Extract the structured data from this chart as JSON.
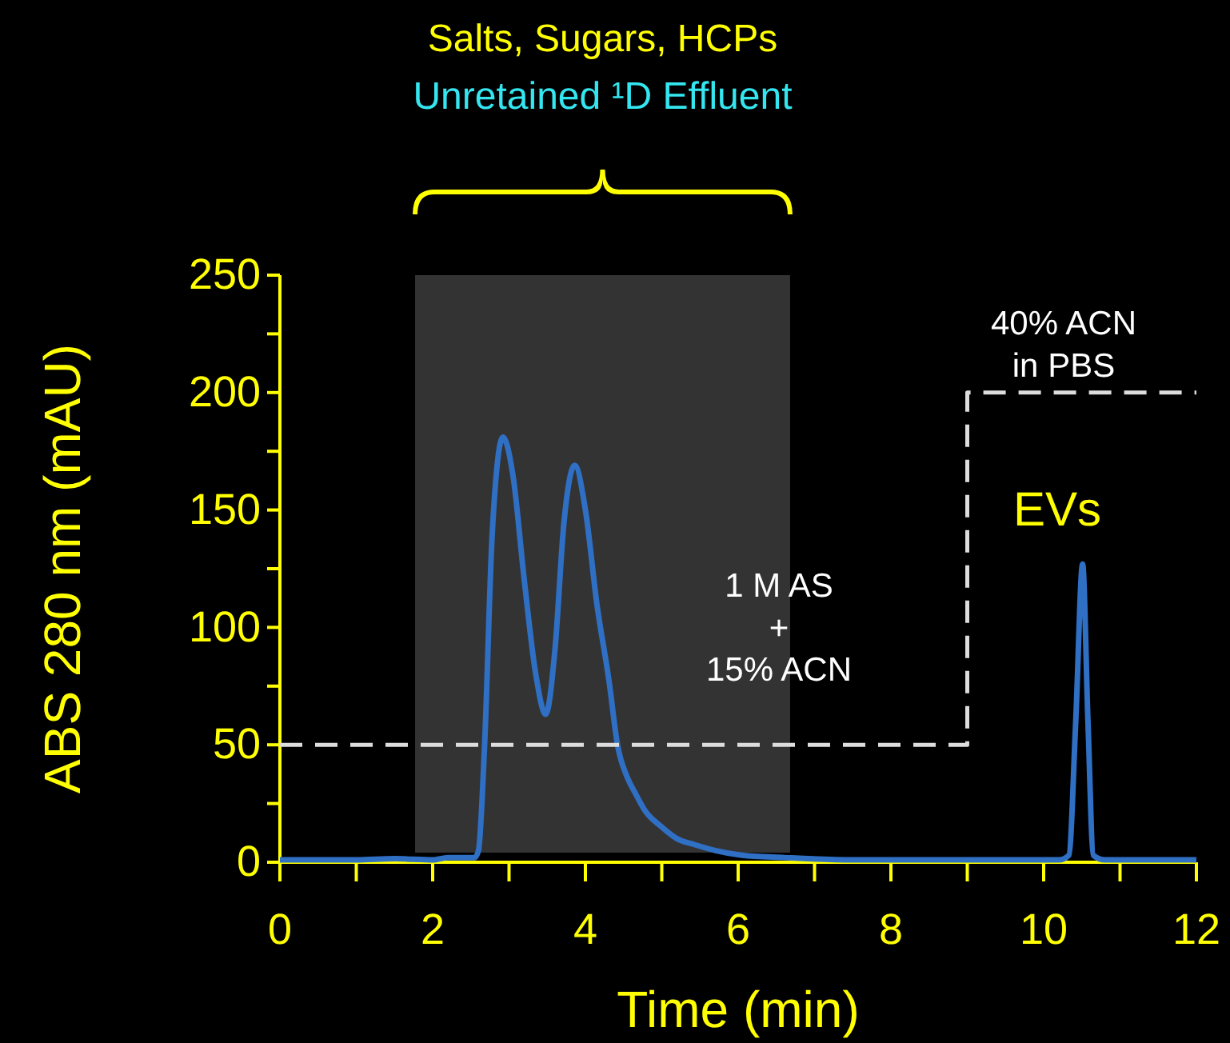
{
  "chart_data": {
    "type": "line",
    "title": "Salts, Sugars, HCPs",
    "subtitle": "Unretained ¹D Effluent",
    "xlabel": "Time (min)",
    "ylabel": "ABS 280 nm (mAU)",
    "xlim": [
      0,
      12
    ],
    "xticks": [
      0,
      {
        "value": 1,
        "label": null
      },
      2,
      {
        "value": 3,
        "label": null
      },
      4,
      {
        "value": 5,
        "label": null
      },
      6,
      {
        "value": 7,
        "label": null
      },
      8,
      {
        "value": 9,
        "label": null
      },
      10,
      {
        "value": 11,
        "label": null
      },
      12
    ],
    "ylim": [
      0,
      250
    ],
    "yticks": [
      0,
      {
        "value": 25,
        "label": null
      },
      50,
      {
        "value": 75,
        "label": null
      },
      100,
      {
        "value": 125,
        "label": null
      },
      150,
      {
        "value": 175,
        "label": null
      },
      200,
      {
        "value": 225,
        "label": null
      },
      250
    ],
    "series": [
      {
        "color": "#2f6fc4",
        "x": [
          0,
          1,
          1.5,
          2.0,
          2.2,
          2.4,
          2.55,
          2.6,
          2.68,
          2.78,
          2.92,
          3.05,
          3.2,
          3.35,
          3.48,
          3.6,
          3.72,
          3.86,
          4.0,
          4.15,
          4.31,
          4.42,
          4.55,
          4.66,
          4.78,
          5.0,
          5.2,
          5.43,
          5.7,
          6.05,
          6.6,
          7.5,
          8.5,
          9.5,
          10.2,
          10.33,
          10.42,
          10.51,
          10.58,
          10.65,
          10.8,
          11.5,
          12
        ],
        "values": [
          1,
          1,
          1.5,
          1,
          2,
          2,
          2,
          5,
          50,
          140,
          181,
          165,
          120,
          80,
          63,
          90,
          145,
          169,
          150,
          110,
          77,
          50,
          36,
          29,
          22,
          15,
          10,
          7.5,
          5,
          3,
          2,
          1,
          1,
          1,
          1,
          3,
          60,
          127,
          60,
          3,
          1,
          1,
          1
        ]
      },
      {
        "type": "step",
        "color": "#dddddd",
        "line_style": "dashed",
        "x": [
          0,
          9,
          12
        ],
        "values": [
          50,
          200,
          200
        ]
      }
    ],
    "bands": [
      {
        "axis": "x",
        "from": 1.77,
        "to": 6.68,
        "color": "#333333"
      }
    ],
    "annotations": [
      "1 M AS\n+\n15% ACN",
      "40% ACN\nin PBS",
      "EVs"
    ]
  }
}
